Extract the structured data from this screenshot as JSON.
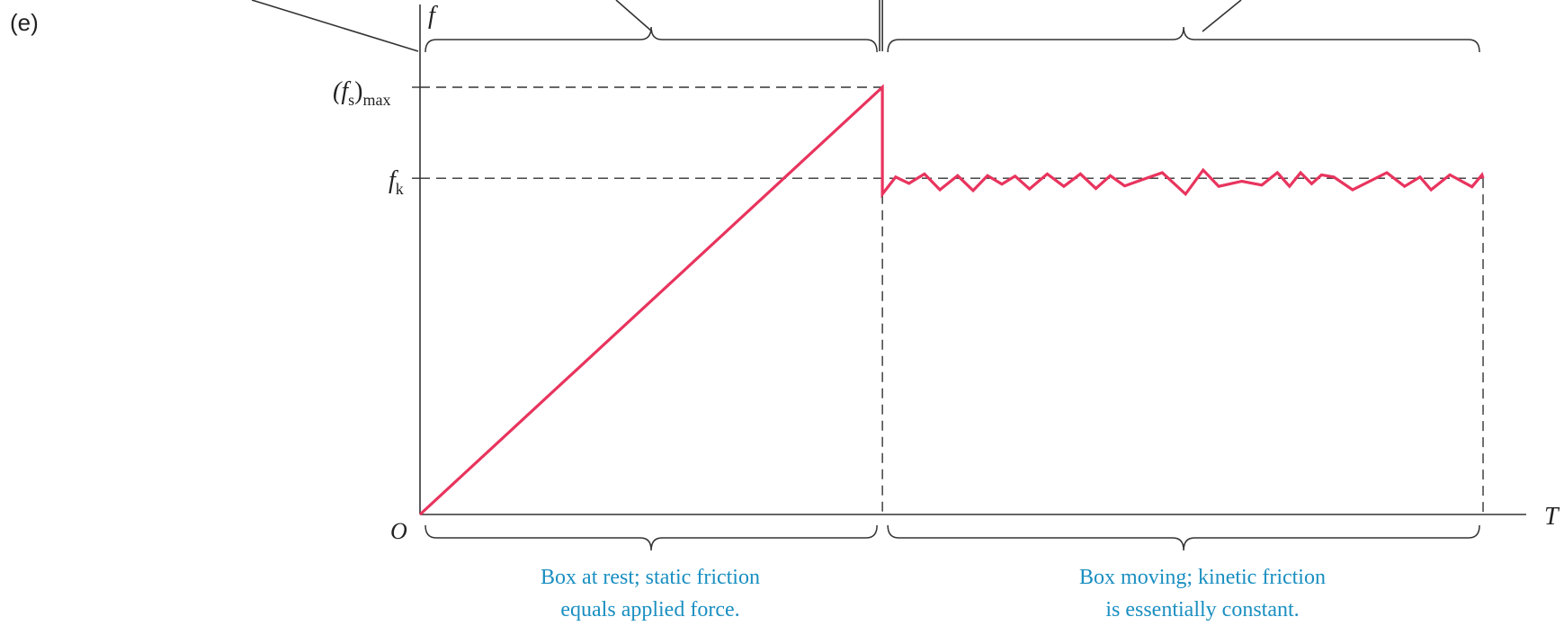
{
  "panel_label": "(e)",
  "colors": {
    "curve": "#e8345e",
    "axis": "#333333",
    "dash": "#333333",
    "caption": "#1a8fc1"
  },
  "chart_data": {
    "type": "line",
    "xlabel": "T",
    "ylabel": "f",
    "origin_label": "O",
    "y_ticks": [
      {
        "label_main": "(f",
        "label_sub": "s",
        "label_close": ")",
        "label_sub2": "max",
        "value": 1.0
      },
      {
        "label_main": "f",
        "label_sub": "k",
        "label_close": "",
        "label_sub2": "",
        "value": 0.787
      }
    ],
    "x_range": [
      0,
      1.0
    ],
    "y_range": [
      0,
      1.0
    ],
    "breakpoint_x": 0.418,
    "end_x": 0.961,
    "series": [
      {
        "points": [
          [
            0,
            0
          ],
          [
            0.418,
            1.0
          ],
          [
            0.418,
            0.75
          ],
          [
            0.43,
            0.79
          ],
          [
            0.442,
            0.775
          ],
          [
            0.456,
            0.797
          ],
          [
            0.47,
            0.76
          ],
          [
            0.486,
            0.793
          ],
          [
            0.5,
            0.758
          ],
          [
            0.513,
            0.793
          ],
          [
            0.526,
            0.773
          ],
          [
            0.538,
            0.792
          ],
          [
            0.551,
            0.762
          ],
          [
            0.567,
            0.797
          ],
          [
            0.582,
            0.768
          ],
          [
            0.597,
            0.797
          ],
          [
            0.611,
            0.763
          ],
          [
            0.624,
            0.793
          ],
          [
            0.637,
            0.769
          ],
          [
            0.671,
            0.8
          ],
          [
            0.692,
            0.75
          ],
          [
            0.708,
            0.806
          ],
          [
            0.722,
            0.768
          ],
          [
            0.743,
            0.78
          ],
          [
            0.761,
            0.771
          ],
          [
            0.775,
            0.8
          ],
          [
            0.786,
            0.768
          ],
          [
            0.796,
            0.8
          ],
          [
            0.806,
            0.774
          ],
          [
            0.815,
            0.795
          ],
          [
            0.826,
            0.79
          ],
          [
            0.843,
            0.76
          ],
          [
            0.874,
            0.8
          ],
          [
            0.89,
            0.768
          ],
          [
            0.904,
            0.79
          ],
          [
            0.914,
            0.76
          ],
          [
            0.931,
            0.795
          ],
          [
            0.951,
            0.767
          ],
          [
            0.96,
            0.795
          ],
          [
            0.961,
            0.787
          ]
        ]
      }
    ]
  },
  "brackets": {
    "bottom_left_caption": [
      "Box at rest; static friction",
      "equals applied force."
    ],
    "bottom_right_caption": [
      "Box moving; kinetic friction",
      "is essentially constant."
    ]
  }
}
